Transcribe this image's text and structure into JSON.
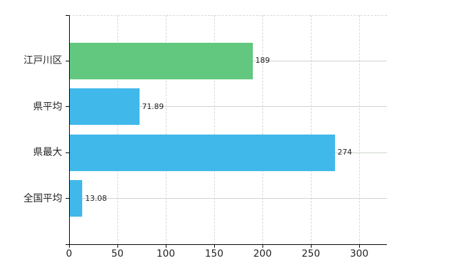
{
  "chart_data": {
    "type": "bar",
    "orientation": "horizontal",
    "title": "",
    "categories": [
      "江戸川区",
      "県平均",
      "県最大",
      "全国平均"
    ],
    "values": [
      189,
      71.89,
      274,
      13.08
    ],
    "value_labels": [
      "189",
      "71.89",
      "274",
      "13.08"
    ],
    "bar_colors": [
      "#62c87f",
      "#41b8ea",
      "#41b8ea",
      "#41b8ea"
    ],
    "x_ticks": [
      0,
      50,
      100,
      150,
      200,
      250,
      300
    ],
    "x_tick_labels": [
      "0",
      "50",
      "100",
      "150",
      "200",
      "250",
      "300"
    ],
    "xlim": [
      0,
      328
    ],
    "legend": "none",
    "grid": {
      "vertical": "dashed",
      "horizontal": "row-center-lines",
      "top_border": "dashed"
    }
  },
  "colors": {
    "bar_green": "#62c87f",
    "bar_blue": "#41b8ea",
    "axis": "#000000",
    "grid_vertical": "#d6d6d6",
    "grid_horizontal": "#ccd4cb",
    "text": "#222222",
    "background": "#ffffff"
  }
}
